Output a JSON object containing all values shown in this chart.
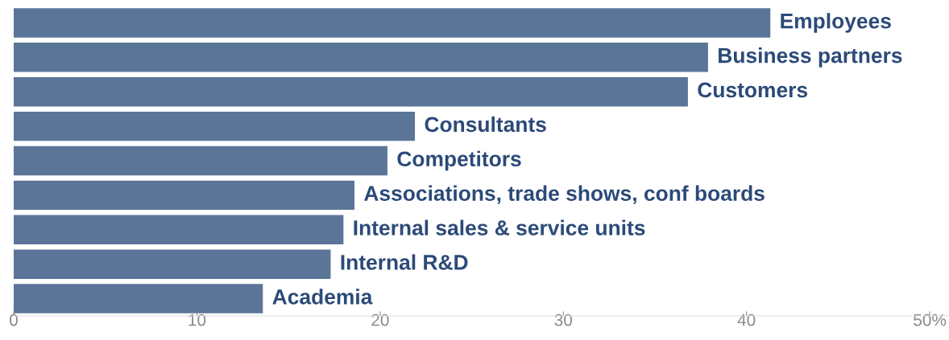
{
  "chart_data": {
    "type": "bar",
    "orientation": "horizontal",
    "categories": [
      "Employees",
      "Business partners",
      "Customers",
      "Consultants",
      "Competitors",
      "Associations, trade shows, conf boards",
      "Internal sales & service units",
      "Internal R&D",
      "Academia"
    ],
    "values": [
      41.3,
      37.9,
      36.8,
      21.9,
      20.4,
      18.6,
      18.0,
      17.3,
      13.6
    ],
    "color": "#5b7598",
    "xlim": [
      0,
      51
    ],
    "xticks": [
      0,
      10,
      20,
      30,
      40,
      {
        "value": 50,
        "label": "50%"
      }
    ],
    "grid": false
  }
}
